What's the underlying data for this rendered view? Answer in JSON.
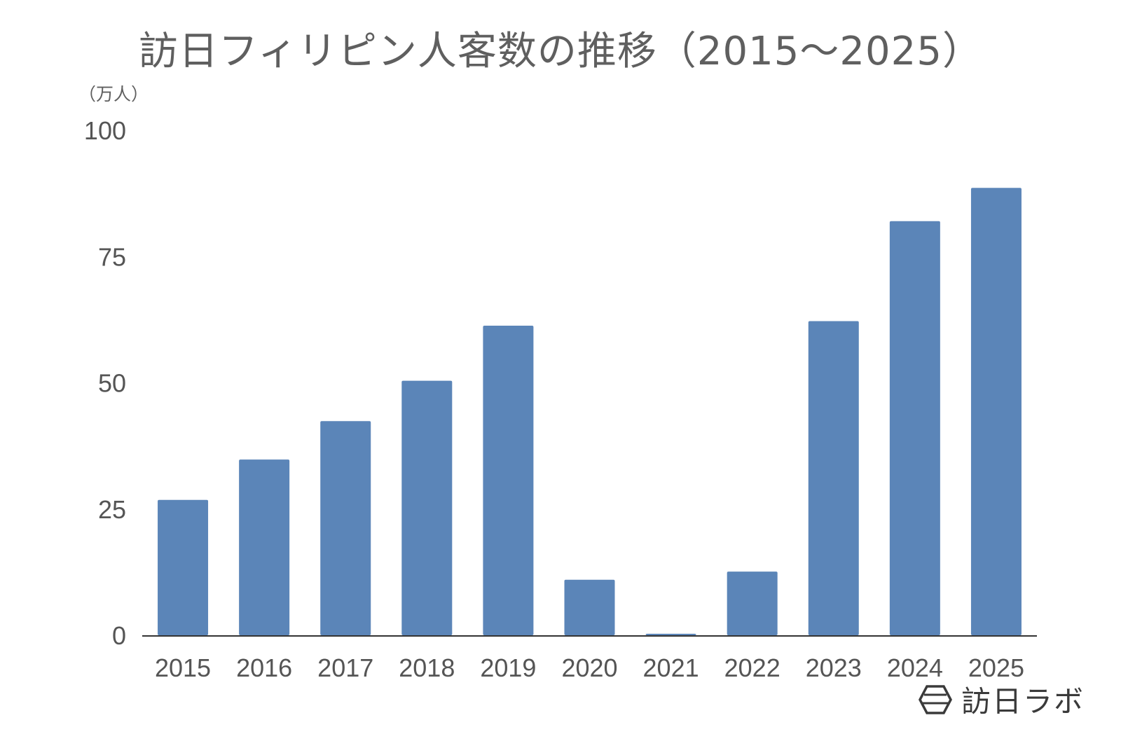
{
  "chart_data": {
    "type": "bar",
    "title": "訪日フィリピン人客数の推移（2015〜2025）",
    "ylabel": "（万人）",
    "xlabel": "",
    "categories": [
      "2015",
      "2016",
      "2017",
      "2018",
      "2019",
      "2020",
      "2021",
      "2022",
      "2023",
      "2024",
      "2025"
    ],
    "values": [
      26.8,
      34.8,
      42.4,
      50.4,
      61.3,
      11.0,
      0.3,
      12.6,
      62.2,
      82.0,
      88.6
    ],
    "ylim": [
      0,
      100
    ],
    "yticks": [
      0,
      25,
      50,
      75,
      100
    ],
    "grid": false,
    "bar_color": "#5b85b8",
    "axis_color": "#333333",
    "text_color": "#5f5f5f"
  },
  "branding": {
    "logo_text": "訪日ラボ",
    "logo_icon": "hexagon-logo-icon"
  }
}
